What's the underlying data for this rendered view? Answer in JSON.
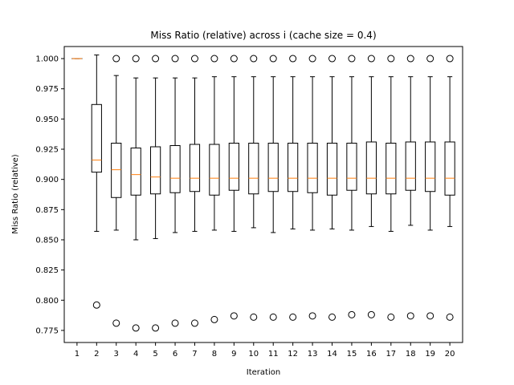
{
  "chart_data": {
    "type": "boxplot",
    "title": "Miss Ratio (relative) across i (cache size = 0.4)",
    "xlabel": "Iteration",
    "ylabel": "Miss Ratio (relative)",
    "categories": [
      "1",
      "2",
      "3",
      "4",
      "5",
      "6",
      "7",
      "8",
      "9",
      "10",
      "11",
      "12",
      "13",
      "14",
      "15",
      "16",
      "17",
      "18",
      "19",
      "20"
    ],
    "ylim": [
      0.765,
      1.01
    ],
    "yticks": [
      0.775,
      0.8,
      0.825,
      0.85,
      0.875,
      0.9,
      0.925,
      0.95,
      0.975,
      1.0
    ],
    "ytick_labels": [
      "0.775",
      "0.800",
      "0.825",
      "0.850",
      "0.875",
      "0.900",
      "0.925",
      "0.950",
      "0.975",
      "1.000"
    ],
    "grid": false,
    "colors": {
      "box": "#000000",
      "median": "#ff7f0e",
      "flier": "#000000"
    },
    "boxes": [
      {
        "label": "1",
        "whisker_low": 1.0,
        "q1": 1.0,
        "median": 1.0,
        "q3": 1.0,
        "whisker_high": 1.0,
        "fliers": []
      },
      {
        "label": "2",
        "whisker_low": 0.857,
        "q1": 0.906,
        "median": 0.916,
        "q3": 0.962,
        "whisker_high": 1.003,
        "fliers": [
          0.796
        ]
      },
      {
        "label": "3",
        "whisker_low": 0.858,
        "q1": 0.885,
        "median": 0.908,
        "q3": 0.93,
        "whisker_high": 0.986,
        "fliers": [
          0.781,
          1.0
        ]
      },
      {
        "label": "4",
        "whisker_low": 0.85,
        "q1": 0.887,
        "median": 0.904,
        "q3": 0.926,
        "whisker_high": 0.984,
        "fliers": [
          0.777,
          1.0
        ]
      },
      {
        "label": "5",
        "whisker_low": 0.851,
        "q1": 0.888,
        "median": 0.902,
        "q3": 0.927,
        "whisker_high": 0.984,
        "fliers": [
          0.777,
          1.0
        ]
      },
      {
        "label": "6",
        "whisker_low": 0.856,
        "q1": 0.889,
        "median": 0.901,
        "q3": 0.928,
        "whisker_high": 0.984,
        "fliers": [
          0.781,
          1.0
        ]
      },
      {
        "label": "7",
        "whisker_low": 0.857,
        "q1": 0.89,
        "median": 0.901,
        "q3": 0.929,
        "whisker_high": 0.984,
        "fliers": [
          0.781,
          1.0
        ]
      },
      {
        "label": "8",
        "whisker_low": 0.858,
        "q1": 0.887,
        "median": 0.901,
        "q3": 0.929,
        "whisker_high": 0.985,
        "fliers": [
          0.784,
          1.0
        ]
      },
      {
        "label": "9",
        "whisker_low": 0.857,
        "q1": 0.891,
        "median": 0.901,
        "q3": 0.93,
        "whisker_high": 0.985,
        "fliers": [
          0.787,
          1.0
        ]
      },
      {
        "label": "10",
        "whisker_low": 0.86,
        "q1": 0.888,
        "median": 0.901,
        "q3": 0.93,
        "whisker_high": 0.985,
        "fliers": [
          0.786,
          1.0
        ]
      },
      {
        "label": "11",
        "whisker_low": 0.856,
        "q1": 0.89,
        "median": 0.901,
        "q3": 0.93,
        "whisker_high": 0.985,
        "fliers": [
          0.786,
          1.0
        ]
      },
      {
        "label": "12",
        "whisker_low": 0.859,
        "q1": 0.89,
        "median": 0.901,
        "q3": 0.93,
        "whisker_high": 0.985,
        "fliers": [
          0.786,
          1.0
        ]
      },
      {
        "label": "13",
        "whisker_low": 0.858,
        "q1": 0.889,
        "median": 0.901,
        "q3": 0.93,
        "whisker_high": 0.985,
        "fliers": [
          0.787,
          1.0
        ]
      },
      {
        "label": "14",
        "whisker_low": 0.859,
        "q1": 0.887,
        "median": 0.901,
        "q3": 0.93,
        "whisker_high": 0.985,
        "fliers": [
          0.786,
          1.0
        ]
      },
      {
        "label": "15",
        "whisker_low": 0.858,
        "q1": 0.891,
        "median": 0.901,
        "q3": 0.93,
        "whisker_high": 0.985,
        "fliers": [
          0.788,
          1.0
        ]
      },
      {
        "label": "16",
        "whisker_low": 0.861,
        "q1": 0.888,
        "median": 0.901,
        "q3": 0.931,
        "whisker_high": 0.985,
        "fliers": [
          0.788,
          1.0
        ]
      },
      {
        "label": "17",
        "whisker_low": 0.857,
        "q1": 0.888,
        "median": 0.901,
        "q3": 0.93,
        "whisker_high": 0.985,
        "fliers": [
          0.786,
          1.0
        ]
      },
      {
        "label": "18",
        "whisker_low": 0.862,
        "q1": 0.891,
        "median": 0.901,
        "q3": 0.931,
        "whisker_high": 0.985,
        "fliers": [
          0.787,
          1.0
        ]
      },
      {
        "label": "19",
        "whisker_low": 0.858,
        "q1": 0.89,
        "median": 0.901,
        "q3": 0.931,
        "whisker_high": 0.985,
        "fliers": [
          0.787,
          1.0
        ]
      },
      {
        "label": "20",
        "whisker_low": 0.861,
        "q1": 0.887,
        "median": 0.901,
        "q3": 0.931,
        "whisker_high": 0.985,
        "fliers": [
          0.786,
          1.0
        ]
      }
    ]
  }
}
